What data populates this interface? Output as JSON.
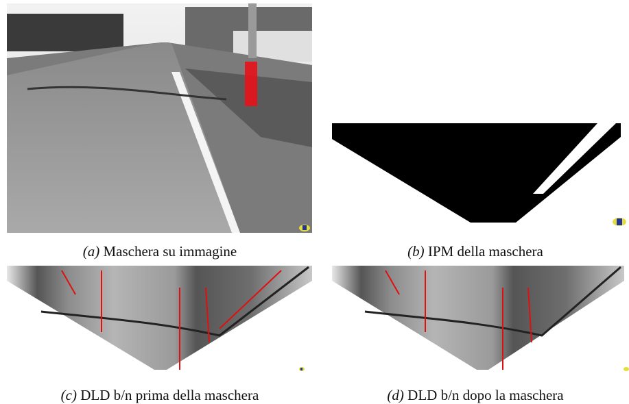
{
  "figures": [
    {
      "label": "(a)",
      "caption": "Maschera su immagine"
    },
    {
      "label": "(b)",
      "caption": "IPM della maschera"
    },
    {
      "label": "(c)",
      "caption": "DLD b/n prima della maschera"
    },
    {
      "label": "(d)",
      "caption": "DLD b/n dopo la maschera"
    }
  ]
}
